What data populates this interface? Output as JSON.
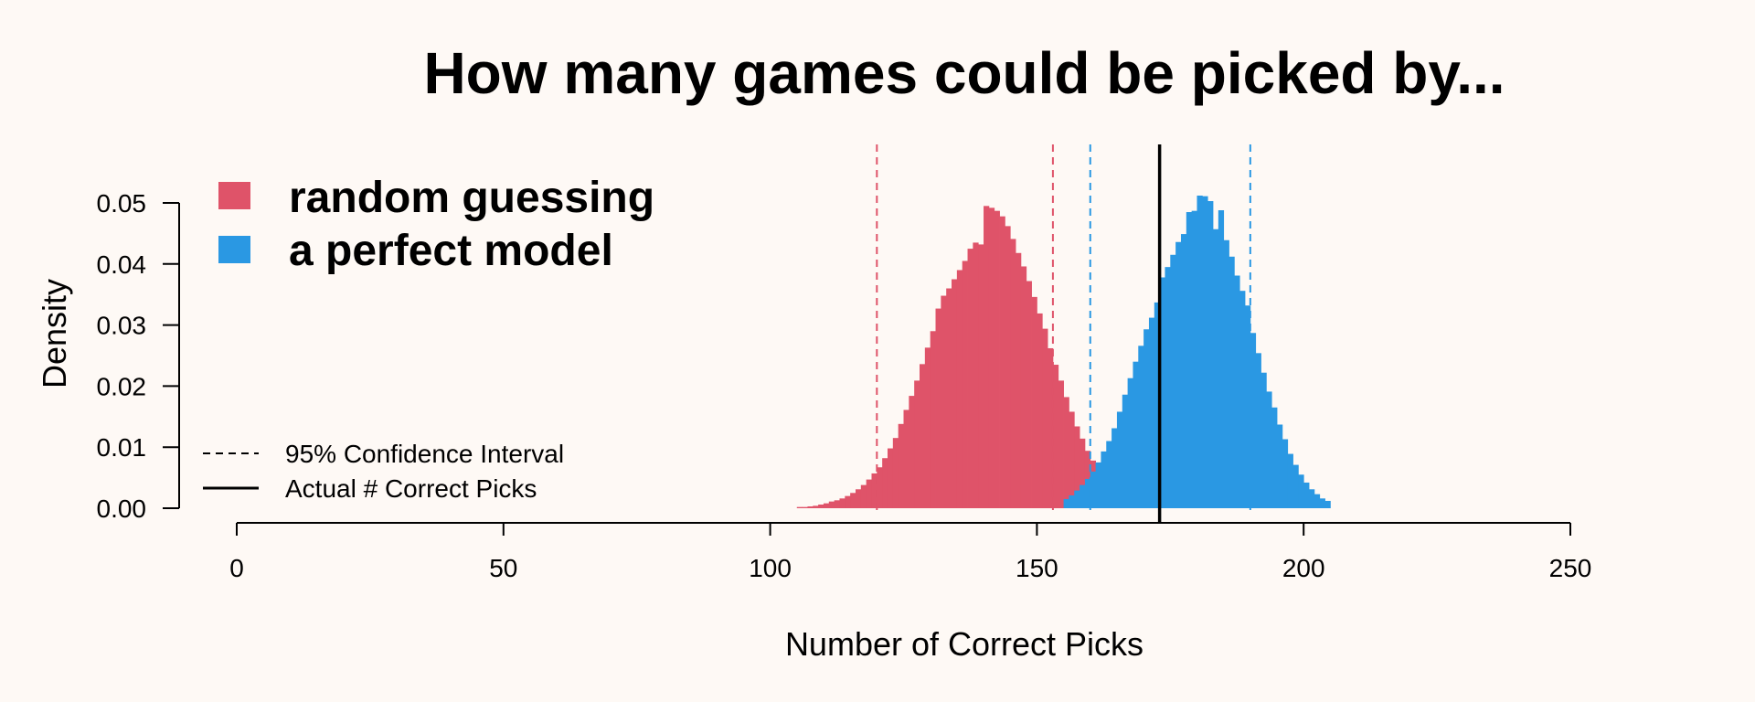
{
  "chart_data": {
    "type": "bar",
    "title": "How many games could be picked by...",
    "xlabel": "Number of Correct Picks",
    "ylabel": "Density",
    "xlim": [
      0,
      250
    ],
    "ylim": [
      0,
      0.05
    ],
    "x_ticks": [
      "0",
      "50",
      "100",
      "150",
      "200",
      "250"
    ],
    "y_ticks": [
      "0.00",
      "0.01",
      "0.02",
      "0.03",
      "0.04",
      "0.05"
    ],
    "bin_width": 1,
    "series": [
      {
        "name": "random guessing",
        "color": "#df5369",
        "bin_start": 105,
        "values": [
          0.0002,
          0.0002,
          0.0003,
          0.0004,
          0.0006,
          0.0008,
          0.0011,
          0.0013,
          0.0016,
          0.002,
          0.0025,
          0.0031,
          0.0038,
          0.0047,
          0.0057,
          0.0067,
          0.0082,
          0.0098,
          0.0115,
          0.0138,
          0.0161,
          0.0184,
          0.0209,
          0.0236,
          0.0263,
          0.029,
          0.0327,
          0.0348,
          0.036,
          0.0375,
          0.039,
          0.0405,
          0.0425,
          0.0435,
          0.0432,
          0.0495,
          0.0492,
          0.0487,
          0.0478,
          0.0462,
          0.0441,
          0.0418,
          0.0396,
          0.0372,
          0.0346,
          0.0319,
          0.0294,
          0.0262,
          0.0235,
          0.0209,
          0.0182,
          0.0158,
          0.0134,
          0.0114,
          0.0094,
          0.0078,
          0.0064,
          0.0051,
          0.0041,
          0.0031,
          0.0024,
          0.0019,
          0.0014,
          0.0011,
          0.0008,
          0.0006,
          0.0004,
          0.0003,
          0.0002,
          0.0001
        ],
        "ci_95": [
          120,
          153
        ]
      },
      {
        "name": "a perfect model",
        "color": "#2a98e3",
        "bin_start": 155,
        "values": [
          0.0015,
          0.0021,
          0.0029,
          0.0038,
          0.0048,
          0.006,
          0.0075,
          0.0093,
          0.011,
          0.0131,
          0.0158,
          0.0186,
          0.0213,
          0.024,
          0.0266,
          0.0293,
          0.0312,
          0.0337,
          0.0378,
          0.0395,
          0.0415,
          0.0436,
          0.0449,
          0.0485,
          0.0487,
          0.0512,
          0.0511,
          0.0503,
          0.0457,
          0.0488,
          0.0439,
          0.0412,
          0.0381,
          0.0356,
          0.0332,
          0.0287,
          0.0254,
          0.0222,
          0.0191,
          0.0165,
          0.0137,
          0.0113,
          0.0089,
          0.0071,
          0.0055,
          0.0042,
          0.0031,
          0.0023,
          0.0016,
          0.0012
        ],
        "ci_95": [
          160,
          190
        ]
      }
    ],
    "actual_correct_picks": 173,
    "legend": {
      "placement": "top-left",
      "entries": [
        "random guessing",
        "a perfect model"
      ],
      "line_entries": [
        "95% Confidence Interval",
        "Actual # Correct Picks"
      ]
    }
  }
}
